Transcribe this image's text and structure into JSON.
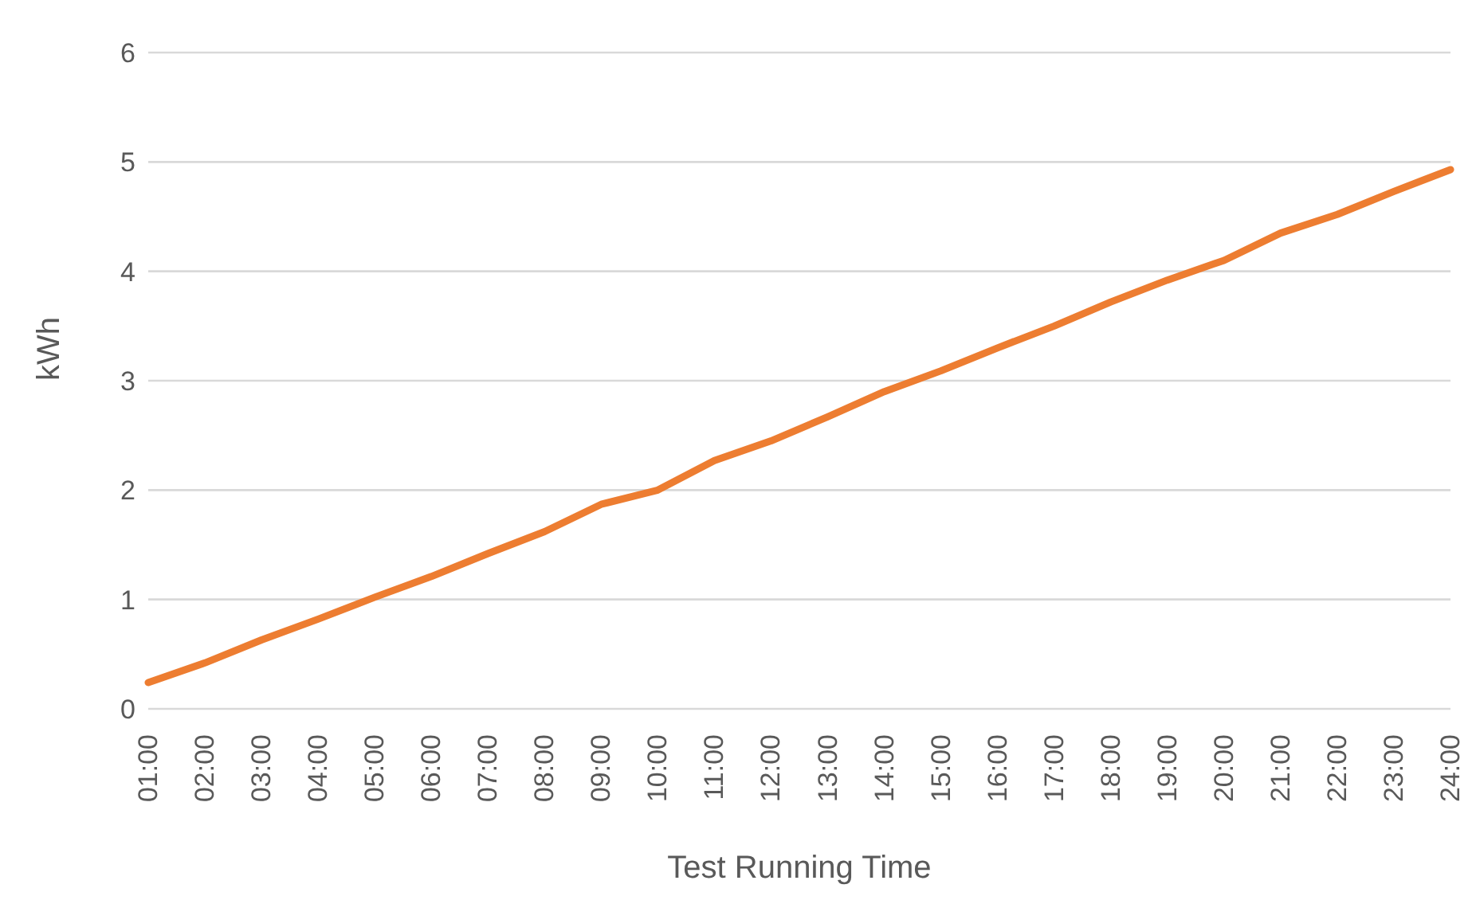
{
  "chart_data": {
    "type": "line",
    "xlabel": "Test Running Time",
    "ylabel": "kWh",
    "categories": [
      "01:00",
      "02:00",
      "03:00",
      "04:00",
      "05:00",
      "06:00",
      "07:00",
      "08:00",
      "09:00",
      "10:00",
      "11:00",
      "12:00",
      "13:00",
      "14:00",
      "15:00",
      "16:00",
      "17:00",
      "18:00",
      "19:00",
      "20:00",
      "21:00",
      "22:00",
      "23:00",
      "24:00"
    ],
    "series": [
      {
        "color": "#ed7d31",
        "values": [
          0.24,
          0.42,
          0.63,
          0.82,
          1.02,
          1.21,
          1.42,
          1.62,
          1.87,
          2.0,
          2.27,
          2.45,
          2.67,
          2.9,
          3.09,
          3.3,
          3.5,
          3.72,
          3.92,
          4.1,
          4.35,
          4.52,
          4.73,
          4.93
        ]
      }
    ],
    "ylim": [
      0,
      6
    ],
    "yticks": [
      0,
      1,
      2,
      3,
      4,
      5,
      6
    ],
    "grid": "y",
    "legend": false,
    "marker": "none",
    "line_style": "solid"
  }
}
